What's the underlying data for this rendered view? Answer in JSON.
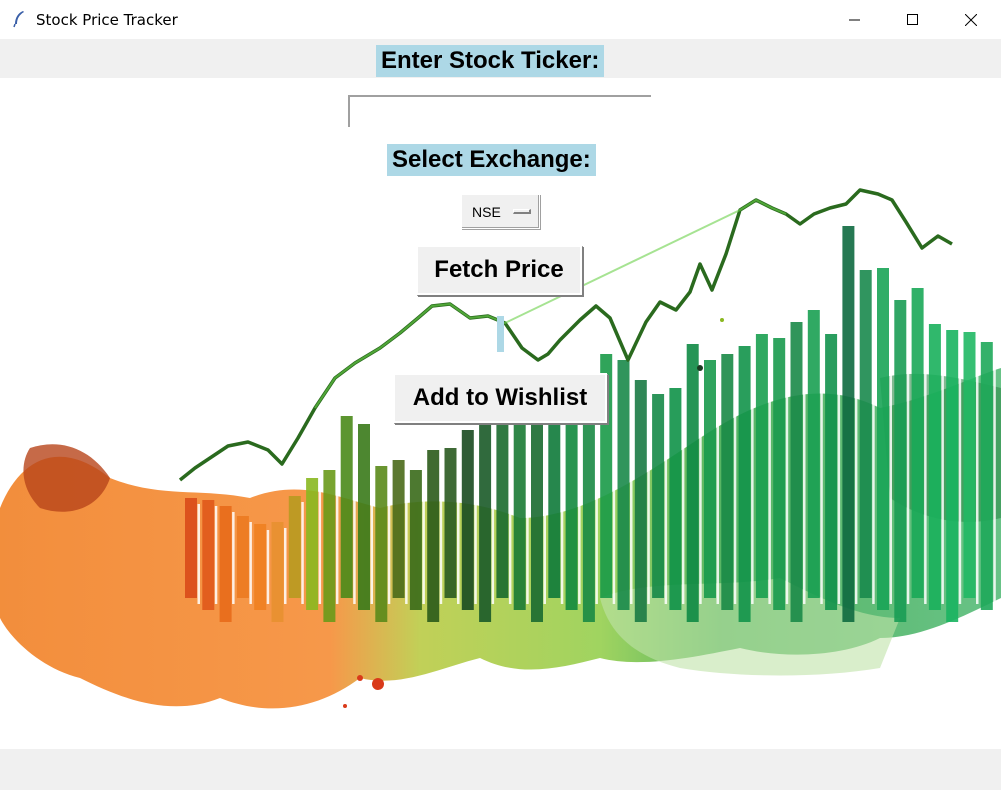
{
  "window": {
    "title": "Stock Price Tracker",
    "controls": [
      "minimize",
      "maximize",
      "close"
    ]
  },
  "form": {
    "ticker_label": "Enter Stock Ticker:",
    "ticker_value": "",
    "exchange_label": "Select Exchange:",
    "exchange_selected": "NSE",
    "fetch_button": "Fetch Price",
    "price_result": "",
    "wishlist_button": "Add to Wishlist"
  },
  "background": {
    "description_icon": "stock-market-watercolor-illustration",
    "colors": {
      "orange": "#f07a1a",
      "light_green": "#9bcf3a",
      "green": "#2e9e4a",
      "dark_green": "#1b5e30",
      "label_bg": "#add8e6",
      "window_bg": "#f0f0f0"
    }
  }
}
